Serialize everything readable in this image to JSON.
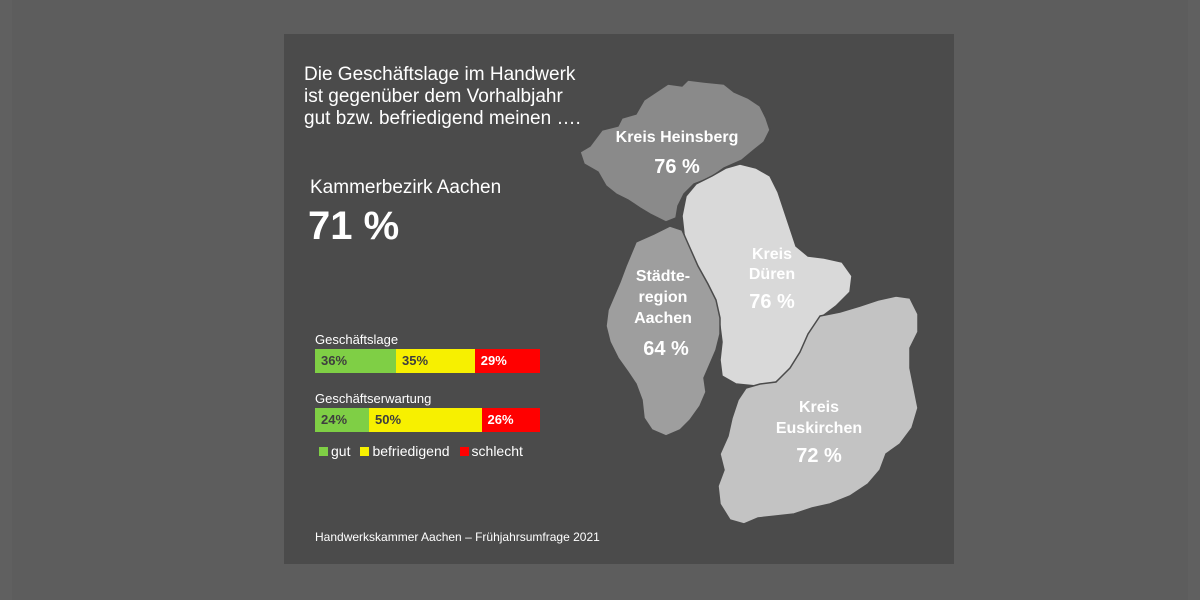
{
  "headline": [
    "Die Geschäftslage im Handwerk",
    "ist gegenüber dem Vorhalbjahr",
    "gut bzw. befriedigend meinen …."
  ],
  "summary": {
    "name": "Kammerbezirk Aachen",
    "value": "71 %"
  },
  "bars": {
    "lage": {
      "title": "Geschäftslage",
      "gut": 36,
      "befriedigend": 35,
      "schlecht": 29,
      "gut_label": "36%",
      "befriedigend_label": "35%",
      "schlecht_label": "29%"
    },
    "erwartung": {
      "title": "Geschäftserwartung",
      "gut": 24,
      "befriedigend": 50,
      "schlecht": 26,
      "gut_label": "24%",
      "befriedigend_label": "50%",
      "schlecht_label": "26%"
    }
  },
  "legend": {
    "gut": "gut",
    "befriedigend": "befriedigend",
    "schlecht": "schlecht"
  },
  "colors": {
    "gut": "#7fcf45",
    "befriedigend": "#f7f000",
    "schlecht": "#ff0000"
  },
  "regions": {
    "heinsberg": {
      "name": "Kreis Heinsberg",
      "value": "76 %"
    },
    "dueren": {
      "name1": "Kreis",
      "name2": "Düren",
      "value": "76 %"
    },
    "aachen": {
      "name1": "Städte-",
      "name2": "region",
      "name3": "Aachen",
      "value": "64 %"
    },
    "euskirchen": {
      "name1": "Kreis",
      "name2": "Euskirchen",
      "value": "72 %"
    }
  },
  "footer": "Handwerkskammer Aachen – Frühjahrsumfrage 2021"
}
